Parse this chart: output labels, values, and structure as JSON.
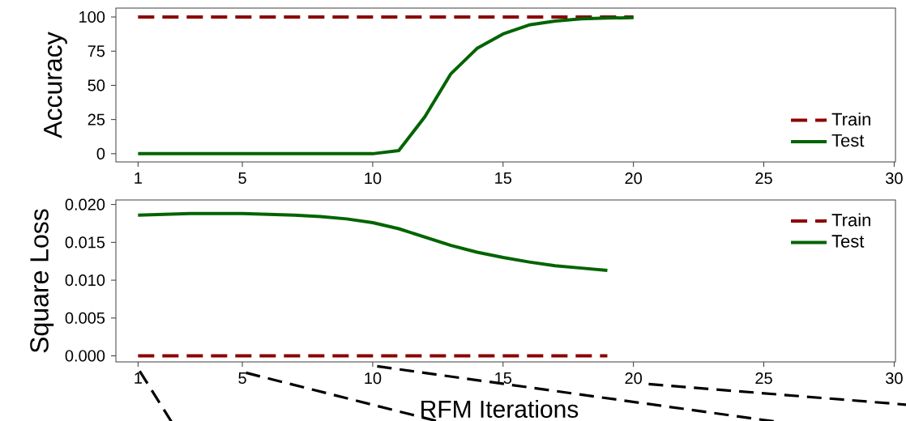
{
  "chart_data": [
    {
      "type": "line",
      "ylabel": "Accuracy",
      "x": [
        1,
        2,
        3,
        4,
        5,
        6,
        7,
        8,
        9,
        10,
        11,
        12,
        13,
        14,
        15,
        16,
        17,
        18,
        19,
        20
      ],
      "xlim": [
        0.15,
        30.05
      ],
      "xticks": [
        1,
        5,
        10,
        15,
        20,
        25,
        30
      ],
      "ylim": [
        -6,
        106.5
      ],
      "yticks": [
        0,
        25,
        50,
        75,
        100
      ],
      "legend": "bottom right",
      "series": [
        {
          "name": "Train",
          "color": "#8b0000",
          "line_style": "dashed",
          "values": [
            100,
            100,
            100,
            100,
            100,
            100,
            100,
            100,
            100,
            100,
            100,
            100,
            100,
            100,
            100,
            100,
            100,
            100,
            100,
            100
          ]
        },
        {
          "name": "Test",
          "color": "#006400",
          "line_style": "solid",
          "values": [
            0,
            0,
            0,
            0,
            0,
            0,
            0,
            0,
            0,
            0,
            2.3,
            27,
            58.5,
            77,
            87.6,
            94.2,
            97,
            98.7,
            99.2,
            99.5
          ]
        }
      ]
    },
    {
      "type": "line",
      "ylabel": "Square Loss",
      "xlabel": "RFM Iterations",
      "x": [
        1,
        2,
        3,
        4,
        5,
        6,
        7,
        8,
        9,
        10,
        11,
        12,
        13,
        14,
        15,
        16,
        17,
        18,
        19
      ],
      "xlim": [
        0.15,
        30.05
      ],
      "xticks": [
        1,
        5,
        10,
        15,
        20,
        25,
        30
      ],
      "ylim": [
        -0.0008,
        0.0206
      ],
      "yticks": [
        {
          "value": 0,
          "label": "0.000"
        },
        {
          "value": 0.005,
          "label": "0.005"
        },
        {
          "value": 0.01,
          "label": "0.010"
        },
        {
          "value": 0.015,
          "label": "0.015"
        },
        {
          "value": 0.02,
          "label": "0.020"
        }
      ],
      "legend": "top right",
      "series": [
        {
          "name": "Train",
          "color": "#8b0000",
          "line_style": "dashed",
          "values": [
            0,
            0,
            0,
            0,
            0,
            0,
            0,
            0,
            0,
            0,
            0,
            0,
            0,
            0,
            0,
            0,
            0,
            0,
            0
          ]
        },
        {
          "name": "Test",
          "color": "#006400",
          "line_style": "solid",
          "values": [
            0.0186,
            0.0187,
            0.0188,
            0.0188,
            0.0188,
            0.0187,
            0.0186,
            0.0184,
            0.0181,
            0.0176,
            0.0168,
            0.0157,
            0.0146,
            0.0137,
            0.013,
            0.0124,
            0.0119,
            0.0116,
            0.0113
          ]
        }
      ]
    }
  ]
}
